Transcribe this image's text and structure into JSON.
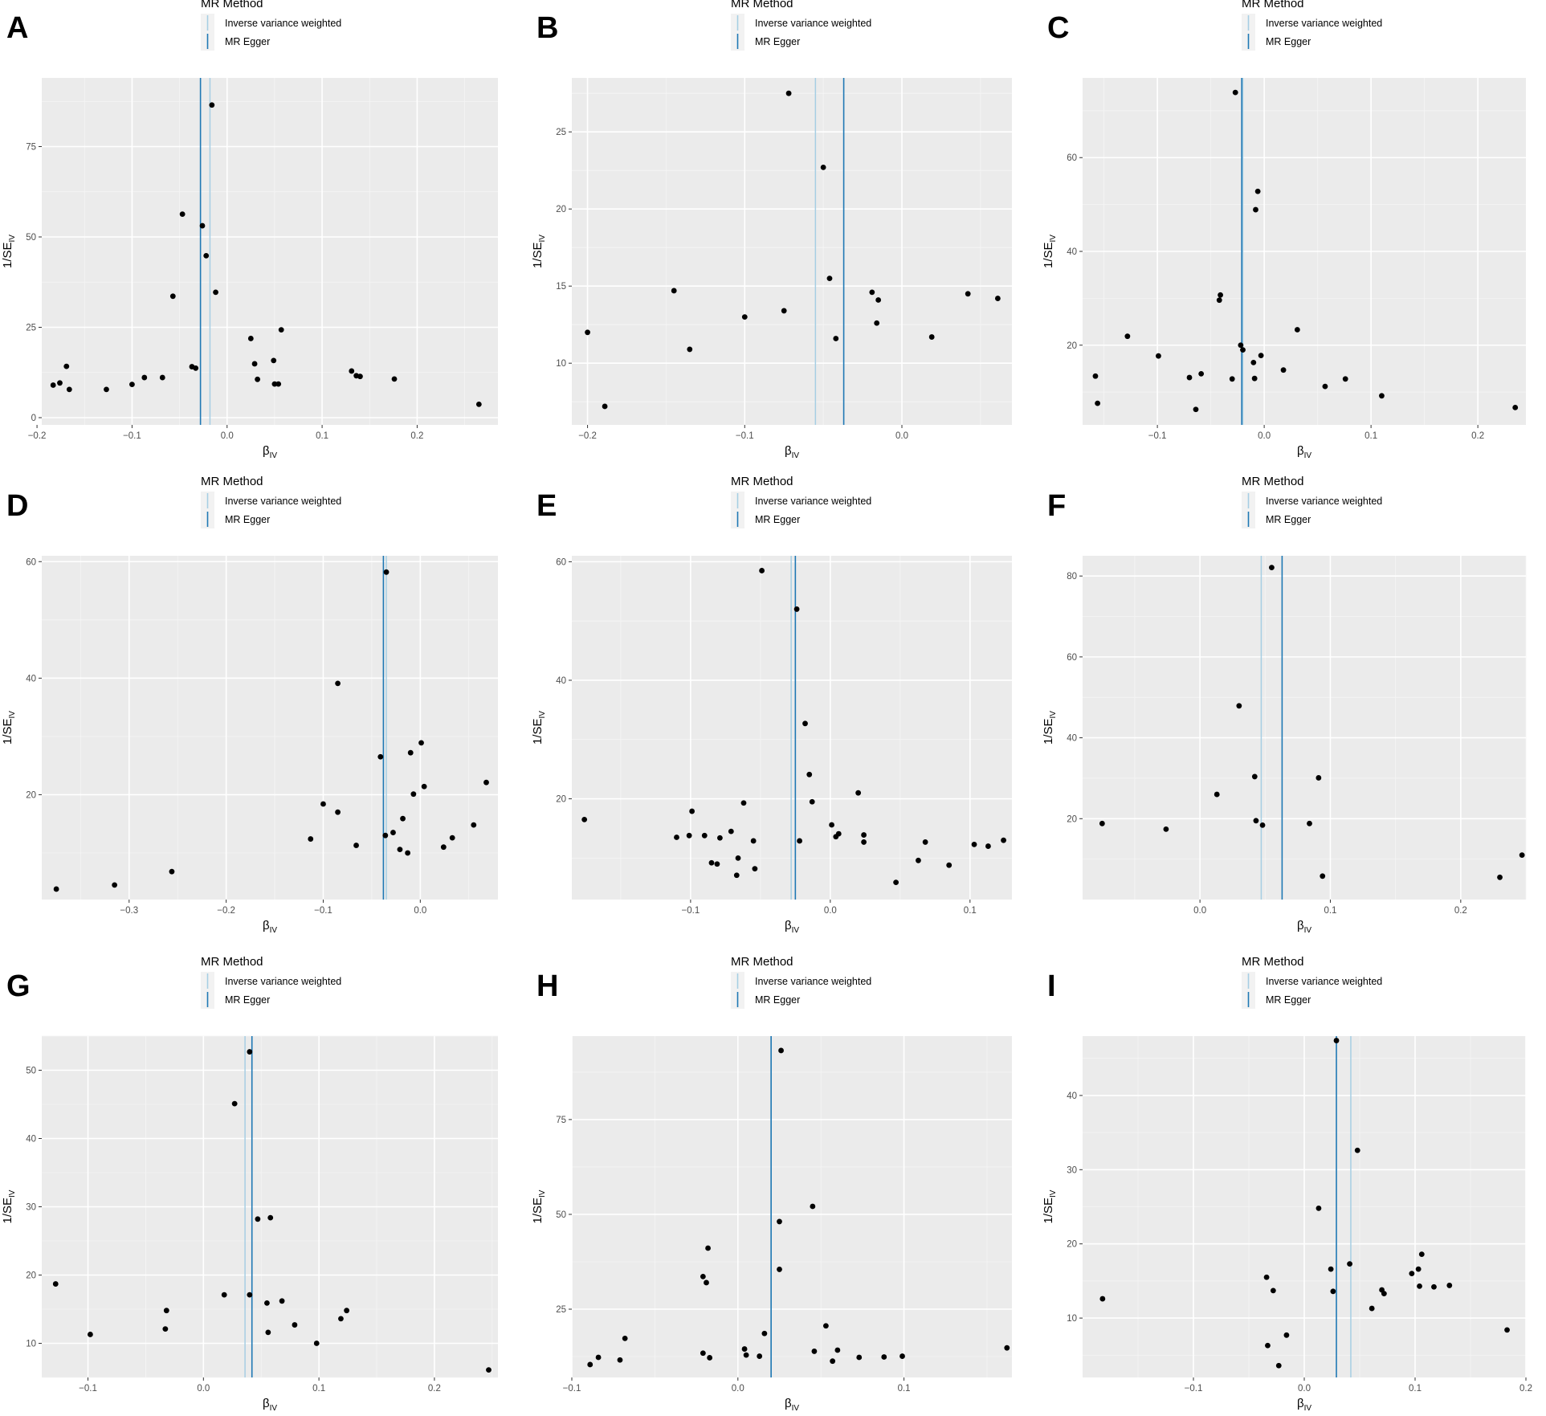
{
  "legend": {
    "title": "MR Method",
    "items": [
      {
        "label": "Inverse variance weighted",
        "color": "#a6cee3"
      },
      {
        "label": "MR Egger",
        "color": "#1f78b4"
      }
    ]
  },
  "axis_labels": {
    "x_main": "β",
    "x_sub": "IV",
    "y_main": "1/SE",
    "y_sub": "IV"
  },
  "chart_data": [
    {
      "panel": "A",
      "type": "scatter",
      "xlim": [
        -0.195,
        0.285
      ],
      "ylim": [
        -2,
        94
      ],
      "xticks": [
        -0.2,
        -0.1,
        0.0,
        0.1,
        0.2
      ],
      "xtick_labels": [
        "−0.2",
        "−0.1",
        "0.0",
        "0.1",
        "0.2"
      ],
      "yticks": [
        0,
        25,
        50,
        75
      ],
      "ytick_labels": [
        "0",
        "25",
        "50",
        "75"
      ],
      "ivw": -0.018,
      "egger": -0.028,
      "points": [
        [
          -0.183,
          9
        ],
        [
          -0.176,
          9.6
        ],
        [
          -0.169,
          14.2
        ],
        [
          -0.166,
          7.8
        ],
        [
          -0.127,
          7.8
        ],
        [
          -0.1,
          9.2
        ],
        [
          -0.087,
          11.1
        ],
        [
          -0.068,
          11.1
        ],
        [
          -0.057,
          33.6
        ],
        [
          -0.047,
          56.3
        ],
        [
          -0.037,
          14.1
        ],
        [
          -0.033,
          13.7
        ],
        [
          -0.026,
          53.1
        ],
        [
          -0.022,
          44.8
        ],
        [
          -0.016,
          86.5
        ],
        [
          -0.012,
          34.7
        ],
        [
          0.025,
          21.9
        ],
        [
          0.029,
          14.9
        ],
        [
          0.032,
          10.6
        ],
        [
          0.049,
          15.8
        ],
        [
          0.05,
          9.3
        ],
        [
          0.054,
          9.3
        ],
        [
          0.057,
          24.3
        ],
        [
          0.131,
          12.9
        ],
        [
          0.136,
          11.6
        ],
        [
          0.14,
          11.4
        ],
        [
          0.176,
          10.7
        ],
        [
          0.265,
          3.7
        ]
      ]
    },
    {
      "panel": "B",
      "type": "scatter",
      "xlim": [
        -0.21,
        0.07
      ],
      "ylim": [
        6,
        28.5
      ],
      "xticks": [
        -0.2,
        -0.1,
        0.0
      ],
      "xtick_labels": [
        "−0.2",
        "−0.1",
        "0.0"
      ],
      "yticks": [
        10,
        15,
        20,
        25
      ],
      "ytick_labels": [
        "10",
        "15",
        "20",
        "25"
      ],
      "ivw": -0.055,
      "egger": -0.037,
      "points": [
        [
          -0.2,
          12
        ],
        [
          -0.189,
          7.2
        ],
        [
          -0.145,
          14.7
        ],
        [
          -0.135,
          10.9
        ],
        [
          -0.1,
          13
        ],
        [
          -0.075,
          13.4
        ],
        [
          -0.072,
          27.5
        ],
        [
          -0.05,
          22.7
        ],
        [
          -0.046,
          15.5
        ],
        [
          -0.042,
          11.6
        ],
        [
          -0.019,
          14.6
        ],
        [
          -0.016,
          12.6
        ],
        [
          -0.015,
          14.1
        ],
        [
          0.019,
          11.7
        ],
        [
          0.042,
          14.5
        ],
        [
          0.061,
          14.2
        ]
      ]
    },
    {
      "panel": "C",
      "type": "scatter",
      "xlim": [
        -0.17,
        0.245
      ],
      "ylim": [
        3,
        77
      ],
      "xticks": [
        -0.1,
        0.0,
        0.1,
        0.2
      ],
      "xtick_labels": [
        "−0.1",
        "0.0",
        "0.1",
        "0.2"
      ],
      "yticks": [
        20,
        40,
        60
      ],
      "ytick_labels": [
        "20",
        "40",
        "60"
      ],
      "ivw": -0.02,
      "egger": -0.021,
      "points": [
        [
          -0.158,
          13.4
        ],
        [
          -0.156,
          7.6
        ],
        [
          -0.128,
          21.9
        ],
        [
          -0.099,
          17.7
        ],
        [
          -0.07,
          13.1
        ],
        [
          -0.064,
          6.3
        ],
        [
          -0.059,
          13.9
        ],
        [
          -0.042,
          29.6
        ],
        [
          -0.041,
          30.7
        ],
        [
          -0.03,
          12.8
        ],
        [
          -0.027,
          73.9
        ],
        [
          -0.022,
          20
        ],
        [
          -0.02,
          19
        ],
        [
          -0.01,
          16.3
        ],
        [
          -0.009,
          12.9
        ],
        [
          -0.008,
          48.9
        ],
        [
          -0.006,
          52.8
        ],
        [
          -0.003,
          17.8
        ],
        [
          0.018,
          14.7
        ],
        [
          0.031,
          23.3
        ],
        [
          0.057,
          11.2
        ],
        [
          0.076,
          12.8
        ],
        [
          0.11,
          9.2
        ],
        [
          0.235,
          6.7
        ]
      ]
    },
    {
      "panel": "D",
      "type": "scatter",
      "xlim": [
        -0.39,
        0.08
      ],
      "ylim": [
        2,
        61
      ],
      "xticks": [
        -0.3,
        -0.2,
        -0.1,
        0.0
      ],
      "xtick_labels": [
        "−0.3",
        "−0.2",
        "−0.1",
        "0.0"
      ],
      "yticks": [
        20,
        40,
        60
      ],
      "ytick_labels": [
        "20",
        "40",
        "60"
      ],
      "ivw": -0.035,
      "egger": -0.038,
      "points": [
        [
          -0.375,
          3.8
        ],
        [
          -0.315,
          4.5
        ],
        [
          -0.256,
          6.8
        ],
        [
          -0.113,
          12.4
        ],
        [
          -0.1,
          18.4
        ],
        [
          -0.085,
          39.1
        ],
        [
          -0.085,
          17
        ],
        [
          -0.066,
          11.3
        ],
        [
          -0.041,
          26.5
        ],
        [
          -0.036,
          13
        ],
        [
          -0.035,
          58.2
        ],
        [
          -0.028,
          13.5
        ],
        [
          -0.021,
          10.6
        ],
        [
          -0.018,
          15.9
        ],
        [
          -0.013,
          10
        ],
        [
          -0.01,
          27.2
        ],
        [
          -0.007,
          20.1
        ],
        [
          0.001,
          28.9
        ],
        [
          0.004,
          21.4
        ],
        [
          0.024,
          11
        ],
        [
          0.033,
          12.6
        ],
        [
          0.055,
          14.8
        ],
        [
          0.068,
          22.1
        ]
      ]
    },
    {
      "panel": "E",
      "type": "scatter",
      "xlim": [
        -0.185,
        0.13
      ],
      "ylim": [
        3,
        61
      ],
      "xticks": [
        -0.1,
        0.0,
        0.1
      ],
      "xtick_labels": [
        "−0.1",
        "0.0",
        "0.1"
      ],
      "yticks": [
        20,
        40,
        60
      ],
      "ytick_labels": [
        "20",
        "40",
        "60"
      ],
      "ivw": -0.028,
      "egger": -0.025,
      "points": [
        [
          -0.176,
          16.5
        ],
        [
          -0.11,
          13.5
        ],
        [
          -0.101,
          13.8
        ],
        [
          -0.099,
          17.9
        ],
        [
          -0.09,
          13.8
        ],
        [
          -0.085,
          9.2
        ],
        [
          -0.081,
          9
        ],
        [
          -0.079,
          13.4
        ],
        [
          -0.071,
          14.5
        ],
        [
          -0.067,
          7.1
        ],
        [
          -0.066,
          10
        ],
        [
          -0.062,
          19.3
        ],
        [
          -0.055,
          12.9
        ],
        [
          -0.054,
          8.2
        ],
        [
          -0.049,
          58.5
        ],
        [
          -0.024,
          52
        ],
        [
          -0.022,
          12.9
        ],
        [
          -0.018,
          32.7
        ],
        [
          -0.015,
          24.1
        ],
        [
          -0.013,
          19.5
        ],
        [
          0.001,
          15.6
        ],
        [
          0.004,
          13.6
        ],
        [
          0.006,
          14.1
        ],
        [
          0.02,
          21
        ],
        [
          0.024,
          12.7
        ],
        [
          0.024,
          13.9
        ],
        [
          0.047,
          5.9
        ],
        [
          0.063,
          9.6
        ],
        [
          0.068,
          12.7
        ],
        [
          0.085,
          8.8
        ],
        [
          0.103,
          12.3
        ],
        [
          0.113,
          12
        ],
        [
          0.124,
          13
        ]
      ]
    },
    {
      "panel": "F",
      "type": "scatter",
      "xlim": [
        -0.09,
        0.25
      ],
      "ylim": [
        0,
        85
      ],
      "xticks": [
        0.0,
        0.1,
        0.2
      ],
      "xtick_labels": [
        "0.0",
        "0.1",
        "0.2"
      ],
      "yticks": [
        20,
        40,
        60,
        80
      ],
      "ytick_labels": [
        "20",
        "40",
        "60",
        "80"
      ],
      "ivw": 0.047,
      "egger": 0.063,
      "points": [
        [
          -0.075,
          18.8
        ],
        [
          -0.026,
          17.4
        ],
        [
          0.013,
          26
        ],
        [
          0.03,
          47.9
        ],
        [
          0.042,
          30.4
        ],
        [
          0.043,
          19.5
        ],
        [
          0.048,
          18.4
        ],
        [
          0.055,
          82.1
        ],
        [
          0.084,
          18.8
        ],
        [
          0.091,
          30.1
        ],
        [
          0.094,
          5.8
        ],
        [
          0.23,
          5.5
        ],
        [
          0.247,
          11
        ]
      ]
    },
    {
      "panel": "G",
      "type": "scatter",
      "xlim": [
        -0.14,
        0.255
      ],
      "ylim": [
        5,
        55
      ],
      "xticks": [
        -0.1,
        0.0,
        0.1,
        0.2
      ],
      "xtick_labels": [
        "−0.1",
        "0.0",
        "0.1",
        "0.2"
      ],
      "yticks": [
        10,
        20,
        30,
        40,
        50
      ],
      "ytick_labels": [
        "10",
        "20",
        "30",
        "40",
        "50"
      ],
      "ivw": 0.036,
      "egger": 0.042,
      "points": [
        [
          -0.128,
          18.7
        ],
        [
          -0.098,
          11.3
        ],
        [
          -0.033,
          12.1
        ],
        [
          -0.032,
          14.8
        ],
        [
          0.018,
          17.1
        ],
        [
          0.027,
          45.1
        ],
        [
          0.04,
          17.1
        ],
        [
          0.04,
          52.7
        ],
        [
          0.047,
          28.2
        ],
        [
          0.055,
          15.9
        ],
        [
          0.056,
          11.6
        ],
        [
          0.058,
          28.4
        ],
        [
          0.068,
          16.2
        ],
        [
          0.079,
          12.7
        ],
        [
          0.098,
          10
        ],
        [
          0.119,
          13.6
        ],
        [
          0.124,
          14.8
        ],
        [
          0.247,
          6.1
        ]
      ]
    },
    {
      "panel": "H",
      "type": "scatter",
      "xlim": [
        -0.1,
        0.165
      ],
      "ylim": [
        7,
        97
      ],
      "xticks": [
        -0.1,
        0.0,
        0.1
      ],
      "xtick_labels": [
        "−0.1",
        "0.0",
        "0.1"
      ],
      "yticks": [
        25,
        50,
        75
      ],
      "ytick_labels": [
        "25",
        "50",
        "75"
      ],
      "ivw": 0.02,
      "egger": 0.02,
      "points": [
        [
          -0.089,
          10.4
        ],
        [
          -0.084,
          12.3
        ],
        [
          -0.071,
          11.6
        ],
        [
          -0.068,
          17.3
        ],
        [
          -0.021,
          33.6
        ],
        [
          -0.021,
          13.4
        ],
        [
          -0.019,
          32
        ],
        [
          -0.018,
          41.1
        ],
        [
          -0.017,
          12.2
        ],
        [
          0.004,
          14.5
        ],
        [
          0.005,
          12.9
        ],
        [
          0.013,
          12.6
        ],
        [
          0.016,
          18.6
        ],
        [
          0.025,
          35.5
        ],
        [
          0.025,
          48.1
        ],
        [
          0.026,
          93.2
        ],
        [
          0.045,
          52.1
        ],
        [
          0.046,
          13.9
        ],
        [
          0.053,
          20.6
        ],
        [
          0.057,
          11.3
        ],
        [
          0.06,
          14.2
        ],
        [
          0.073,
          12.3
        ],
        [
          0.088,
          12.4
        ],
        [
          0.099,
          12.6
        ],
        [
          0.162,
          14.8
        ]
      ]
    },
    {
      "panel": "I",
      "type": "scatter",
      "xlim": [
        -0.2,
        0.2
      ],
      "ylim": [
        2,
        48
      ],
      "xticks": [
        -0.1,
        0.0,
        0.1,
        0.2
      ],
      "xtick_labels": [
        "−0.1",
        "0.0",
        "0.1",
        "0.2"
      ],
      "yticks": [
        10,
        20,
        30,
        40
      ],
      "ytick_labels": [
        "10",
        "20",
        "30",
        "40"
      ],
      "ivw": 0.042,
      "egger": 0.029,
      "points": [
        [
          -0.182,
          12.6
        ],
        [
          -0.034,
          15.5
        ],
        [
          -0.033,
          6.3
        ],
        [
          -0.028,
          13.7
        ],
        [
          -0.023,
          3.6
        ],
        [
          -0.016,
          7.7
        ],
        [
          0.013,
          24.8
        ],
        [
          0.024,
          16.6
        ],
        [
          0.026,
          13.6
        ],
        [
          0.029,
          47.4
        ],
        [
          0.041,
          17.3
        ],
        [
          0.048,
          32.6
        ],
        [
          0.061,
          11.3
        ],
        [
          0.07,
          13.8
        ],
        [
          0.072,
          13.3
        ],
        [
          0.097,
          16
        ],
        [
          0.103,
          16.6
        ],
        [
          0.104,
          14.3
        ],
        [
          0.106,
          18.6
        ],
        [
          0.117,
          14.2
        ],
        [
          0.131,
          14.4
        ],
        [
          0.183,
          8.4
        ]
      ]
    }
  ]
}
